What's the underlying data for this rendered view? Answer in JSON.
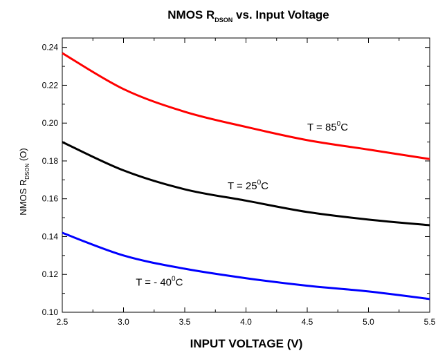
{
  "chart_data": {
    "type": "line",
    "title": {
      "main": "NMOS R",
      "sub": "DSON",
      "rest": " vs. Input Voltage"
    },
    "xlabel": "INPUT VOLTAGE (V)",
    "ylabel": {
      "main": "NMOS R",
      "sub": "DSON",
      "rest": " (O)"
    },
    "xlim": [
      2.5,
      5.5
    ],
    "ylim": [
      0.1,
      0.245
    ],
    "x_ticks": [
      "2.5",
      "3.0",
      "3.5",
      "4.0",
      "4.5",
      "5.0",
      "5.5"
    ],
    "x_tick_values": [
      2.5,
      3.0,
      3.5,
      4.0,
      4.5,
      5.0,
      5.5
    ],
    "y_ticks": [
      "0.10",
      "0.12",
      "0.14",
      "0.16",
      "0.18",
      "0.20",
      "0.22",
      "0.24"
    ],
    "y_tick_values": [
      0.1,
      0.12,
      0.14,
      0.16,
      0.18,
      0.2,
      0.22,
      0.24
    ],
    "x": [
      2.5,
      3.0,
      3.5,
      4.0,
      4.5,
      5.0,
      5.5
    ],
    "series": [
      {
        "key": "t85",
        "color": "#ff0000",
        "values": [
          0.237,
          0.218,
          0.206,
          0.198,
          0.191,
          0.186,
          0.181
        ],
        "label": {
          "prefix": "T = 85",
          "sup": "0",
          "suffix": "C",
          "x": 4.5,
          "y": 0.196
        }
      },
      {
        "key": "t25",
        "color": "#000000",
        "values": [
          0.19,
          0.175,
          0.165,
          0.159,
          0.153,
          0.149,
          0.146
        ],
        "label": {
          "prefix": "T = 25",
          "sup": "0",
          "suffix": "C",
          "x": 3.85,
          "y": 0.165
        }
      },
      {
        "key": "tm40",
        "color": "#0000ff",
        "values": [
          0.142,
          0.13,
          0.123,
          0.118,
          0.114,
          0.111,
          0.107
        ],
        "label": {
          "prefix": "T = - 40",
          "sup": "0",
          "suffix": "C",
          "x": 3.1,
          "y": 0.114
        }
      }
    ],
    "grid": false,
    "legend": "none"
  }
}
